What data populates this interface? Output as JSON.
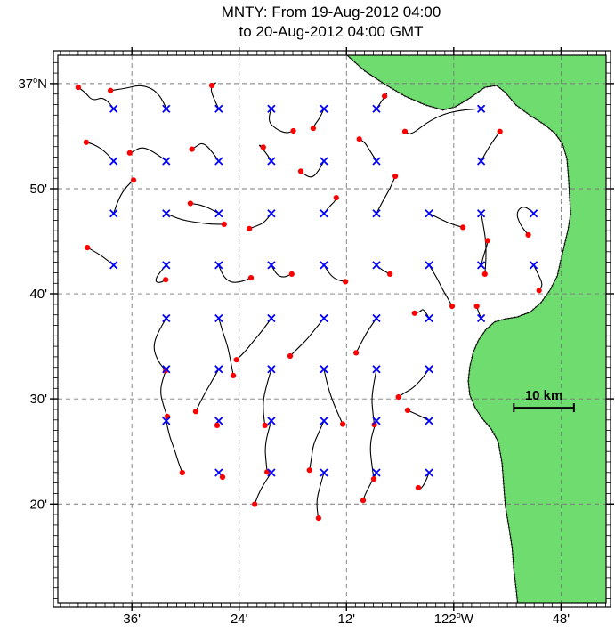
{
  "title": {
    "line1": "MNTY: From 19-Aug-2012 04:00",
    "line2": "to 20-Aug-2012 04:00 GMT"
  },
  "colors": {
    "land": "#6edc6e",
    "coast": "#000000",
    "grid": "#7a7a7a",
    "frame": "#000000",
    "trajectory": "#000000",
    "start_marker": "#0000ff",
    "end_marker": "#ff0000",
    "background": "#ffffff"
  },
  "chart_data": {
    "type": "line",
    "subtype": "trajectory-map",
    "title": "MNTY: From 19-Aug-2012 04:00 to 20-Aug-2012 04:00 GMT",
    "grid": "dashed",
    "legend": "none",
    "x_axis": {
      "range": [
        -122.738,
        -121.716
      ],
      "label_ticks": [
        {
          "lon": -122.6,
          "label": "36'"
        },
        {
          "lon": -122.4,
          "label": "24'"
        },
        {
          "lon": -122.2,
          "label": "12'"
        },
        {
          "lon": -122.0,
          "label": "122°W"
        },
        {
          "lon": -121.8,
          "label": "48'"
        }
      ]
    },
    "y_axis": {
      "range": [
        36.177,
        37.045
      ],
      "label_ticks": [
        {
          "lat": 37.0,
          "label": "37°N"
        },
        {
          "lat": 36.8333,
          "label": "50'"
        },
        {
          "lat": 36.6667,
          "label": "40'"
        },
        {
          "lat": 36.5,
          "label": "30'"
        },
        {
          "lat": 36.3333,
          "label": "20'"
        }
      ]
    },
    "markers": {
      "start": {
        "shape": "x",
        "color": "#0000ff"
      },
      "end": {
        "shape": "dot",
        "color": "#ff0000"
      }
    },
    "scale_bar": {
      "label": "10 km",
      "km": 10,
      "lon_from": -121.888,
      "lon_to": -121.776,
      "lat": 36.486
    },
    "coastline": [
      [
        -122.199,
        37.045
      ],
      [
        -122.166,
        37.02
      ],
      [
        -122.129,
        36.999
      ],
      [
        -122.091,
        36.98
      ],
      [
        -122.053,
        36.966
      ],
      [
        -122.02,
        36.958
      ],
      [
        -121.997,
        36.963
      ],
      [
        -121.97,
        36.977
      ],
      [
        -121.942,
        36.994
      ],
      [
        -121.92,
        36.997
      ],
      [
        -121.904,
        36.986
      ],
      [
        -121.884,
        36.966
      ],
      [
        -121.857,
        36.949
      ],
      [
        -121.831,
        36.935
      ],
      [
        -121.811,
        36.921
      ],
      [
        -121.797,
        36.904
      ],
      [
        -121.789,
        36.881
      ],
      [
        -121.786,
        36.85
      ],
      [
        -121.784,
        36.819
      ],
      [
        -121.782,
        36.794
      ],
      [
        -121.787,
        36.768
      ],
      [
        -121.794,
        36.743
      ],
      [
        -121.801,
        36.718
      ],
      [
        -121.807,
        36.695
      ],
      [
        -121.821,
        36.672
      ],
      [
        -121.837,
        36.653
      ],
      [
        -121.857,
        36.638
      ],
      [
        -121.881,
        36.63
      ],
      [
        -121.904,
        36.627
      ],
      [
        -121.924,
        36.622
      ],
      [
        -121.94,
        36.61
      ],
      [
        -121.954,
        36.593
      ],
      [
        -121.964,
        36.573
      ],
      [
        -121.97,
        36.551
      ],
      [
        -121.973,
        36.528
      ],
      [
        -121.97,
        36.506
      ],
      [
        -121.96,
        36.486
      ],
      [
        -121.947,
        36.469
      ],
      [
        -121.93,
        36.452
      ],
      [
        -121.917,
        36.432
      ],
      [
        -121.91,
        36.398
      ],
      [
        -121.907,
        36.364
      ],
      [
        -121.904,
        36.331
      ],
      [
        -121.897,
        36.296
      ],
      [
        -121.891,
        36.263
      ],
      [
        -121.888,
        36.229
      ],
      [
        -121.884,
        36.201
      ],
      [
        -121.881,
        36.177
      ]
    ],
    "trajectories": [
      [
        [
          -122.634,
          36.96
        ],
        [
          -122.65,
          36.98
        ],
        [
          -122.673,
          36.972
        ],
        [
          -122.687,
          36.986
        ],
        [
          -122.7,
          36.994
        ]
      ],
      [
        [
          -122.536,
          36.96
        ],
        [
          -122.547,
          36.984
        ],
        [
          -122.58,
          36.999
        ],
        [
          -122.614,
          36.992
        ],
        [
          -122.64,
          36.989
        ]
      ],
      [
        [
          -122.438,
          36.96
        ],
        [
          -122.448,
          36.977
        ],
        [
          -122.454,
          36.994
        ],
        [
          -122.441,
          37.003
        ],
        [
          -122.451,
          36.997
        ]
      ],
      [
        [
          -122.34,
          36.96
        ],
        [
          -122.348,
          36.942
        ],
        [
          -122.332,
          36.928
        ],
        [
          -122.312,
          36.921
        ],
        [
          -122.299,
          36.925
        ]
      ],
      [
        [
          -122.242,
          36.96
        ],
        [
          -122.249,
          36.946
        ],
        [
          -122.259,
          36.935
        ],
        [
          -122.262,
          36.929
        ]
      ],
      [
        [
          -122.144,
          36.96
        ],
        [
          -122.133,
          36.974
        ],
        [
          -122.123,
          36.986
        ],
        [
          -122.129,
          36.98
        ]
      ],
      [
        [
          -121.949,
          36.96
        ],
        [
          -121.997,
          36.958
        ],
        [
          -122.043,
          36.943
        ],
        [
          -122.08,
          36.918
        ],
        [
          -122.091,
          36.924
        ]
      ],
      [
        [
          -122.634,
          36.877
        ],
        [
          -122.65,
          36.893
        ],
        [
          -122.672,
          36.904
        ],
        [
          -122.685,
          36.907
        ]
      ],
      [
        [
          -122.536,
          36.877
        ],
        [
          -122.556,
          36.89
        ],
        [
          -122.58,
          36.9
        ],
        [
          -122.597,
          36.893
        ],
        [
          -122.604,
          36.89
        ]
      ],
      [
        [
          -122.438,
          36.877
        ],
        [
          -122.451,
          36.893
        ],
        [
          -122.468,
          36.907
        ],
        [
          -122.481,
          36.9
        ],
        [
          -122.488,
          36.896
        ]
      ],
      [
        [
          -122.34,
          36.877
        ],
        [
          -122.352,
          36.893
        ],
        [
          -122.365,
          36.904
        ],
        [
          -122.355,
          36.899
        ]
      ],
      [
        [
          -122.242,
          36.877
        ],
        [
          -122.252,
          36.861
        ],
        [
          -122.265,
          36.85
        ],
        [
          -122.279,
          36.856
        ],
        [
          -122.285,
          36.861
        ]
      ],
      [
        [
          -122.144,
          36.877
        ],
        [
          -122.156,
          36.893
        ],
        [
          -122.166,
          36.907
        ],
        [
          -122.176,
          36.912
        ]
      ],
      [
        [
          -121.949,
          36.877
        ],
        [
          -121.937,
          36.896
        ],
        [
          -121.924,
          36.912
        ],
        [
          -121.914,
          36.924
        ]
      ],
      [
        [
          -122.634,
          36.794
        ],
        [
          -122.627,
          36.813
        ],
        [
          -122.614,
          36.833
        ],
        [
          -122.597,
          36.847
        ]
      ],
      [
        [
          -122.536,
          36.794
        ],
        [
          -122.514,
          36.785
        ],
        [
          -122.481,
          36.78
        ],
        [
          -122.451,
          36.777
        ],
        [
          -122.428,
          36.777
        ]
      ],
      [
        [
          -122.438,
          36.794
        ],
        [
          -122.454,
          36.802
        ],
        [
          -122.474,
          36.808
        ],
        [
          -122.491,
          36.81
        ]
      ],
      [
        [
          -122.34,
          36.794
        ],
        [
          -122.352,
          36.78
        ],
        [
          -122.368,
          36.774
        ],
        [
          -122.381,
          36.77
        ]
      ],
      [
        [
          -122.242,
          36.794
        ],
        [
          -122.232,
          36.805
        ],
        [
          -122.222,
          36.813
        ],
        [
          -122.219,
          36.819
        ]
      ],
      [
        [
          -122.144,
          36.794
        ],
        [
          -122.133,
          36.813
        ],
        [
          -122.119,
          36.833
        ],
        [
          -122.109,
          36.853
        ]
      ],
      [
        [
          -122.046,
          36.794
        ],
        [
          -122.025,
          36.785
        ],
        [
          -122.003,
          36.777
        ],
        [
          -121.983,
          36.772
        ]
      ],
      [
        [
          -121.851,
          36.794
        ],
        [
          -121.867,
          36.808
        ],
        [
          -121.884,
          36.797
        ],
        [
          -121.877,
          36.777
        ],
        [
          -121.861,
          36.76
        ]
      ],
      [
        [
          -122.634,
          36.712
        ],
        [
          -122.65,
          36.723
        ],
        [
          -122.67,
          36.734
        ],
        [
          -122.683,
          36.74
        ]
      ],
      [
        [
          -122.536,
          36.712
        ],
        [
          -122.551,
          36.698
        ],
        [
          -122.557,
          36.686
        ],
        [
          -122.547,
          36.684
        ],
        [
          -122.537,
          36.689
        ]
      ],
      [
        [
          -122.438,
          36.712
        ],
        [
          -122.431,
          36.695
        ],
        [
          -122.415,
          36.684
        ],
        [
          -122.395,
          36.686
        ],
        [
          -122.378,
          36.692
        ]
      ],
      [
        [
          -122.34,
          36.712
        ],
        [
          -122.332,
          36.698
        ],
        [
          -122.318,
          36.692
        ],
        [
          -122.302,
          36.698
        ]
      ],
      [
        [
          -122.242,
          36.712
        ],
        [
          -122.232,
          36.698
        ],
        [
          -122.219,
          36.689
        ],
        [
          -122.202,
          36.686
        ]
      ],
      [
        [
          -122.144,
          36.712
        ],
        [
          -122.136,
          36.706
        ],
        [
          -122.126,
          36.701
        ],
        [
          -122.119,
          36.698
        ]
      ],
      [
        [
          -122.046,
          36.712
        ],
        [
          -122.033,
          36.695
        ],
        [
          -122.02,
          36.672
        ],
        [
          -122.01,
          36.658
        ],
        [
          -122.003,
          36.647
        ]
      ],
      [
        [
          -121.949,
          36.712
        ],
        [
          -121.944,
          36.729
        ],
        [
          -121.938,
          36.743
        ],
        [
          -121.937,
          36.751
        ]
      ],
      [
        [
          -121.851,
          36.712
        ],
        [
          -121.841,
          36.695
        ],
        [
          -121.834,
          36.681
        ],
        [
          -121.841,
          36.672
        ]
      ],
      [
        [
          -122.536,
          36.628
        ],
        [
          -122.551,
          36.607
        ],
        [
          -122.561,
          36.582
        ],
        [
          -122.551,
          36.559
        ],
        [
          -122.537,
          36.545
        ]
      ],
      [
        [
          -122.438,
          36.628
        ],
        [
          -122.431,
          36.607
        ],
        [
          -122.421,
          36.582
        ],
        [
          -122.415,
          36.556
        ],
        [
          -122.411,
          36.537
        ]
      ],
      [
        [
          -122.34,
          36.628
        ],
        [
          -122.355,
          36.61
        ],
        [
          -122.375,
          36.59
        ],
        [
          -122.391,
          36.573
        ],
        [
          -122.405,
          36.562
        ]
      ],
      [
        [
          -122.242,
          36.628
        ],
        [
          -122.259,
          36.61
        ],
        [
          -122.275,
          36.593
        ],
        [
          -122.292,
          36.579
        ],
        [
          -122.305,
          36.568
        ]
      ],
      [
        [
          -122.144,
          36.628
        ],
        [
          -122.159,
          36.61
        ],
        [
          -122.172,
          36.59
        ],
        [
          -122.182,
          36.573
        ]
      ],
      [
        [
          -122.046,
          36.628
        ],
        [
          -122.056,
          36.644
        ],
        [
          -122.063,
          36.638
        ],
        [
          -122.073,
          36.636
        ]
      ],
      [
        [
          -121.949,
          36.628
        ],
        [
          -121.954,
          36.638
        ],
        [
          -121.957,
          36.647
        ]
      ],
      [
        [
          -122.536,
          36.547
        ],
        [
          -122.544,
          36.528
        ],
        [
          -122.547,
          36.509
        ],
        [
          -122.541,
          36.489
        ],
        [
          -122.534,
          36.472
        ]
      ],
      [
        [
          -122.438,
          36.547
        ],
        [
          -122.451,
          36.528
        ],
        [
          -122.464,
          36.509
        ],
        [
          -122.474,
          36.492
        ],
        [
          -122.481,
          36.48
        ]
      ],
      [
        [
          -122.34,
          36.547
        ],
        [
          -122.348,
          36.525
        ],
        [
          -122.355,
          36.5
        ],
        [
          -122.355,
          36.477
        ],
        [
          -122.352,
          36.458
        ]
      ],
      [
        [
          -122.242,
          36.547
        ],
        [
          -122.236,
          36.523
        ],
        [
          -122.226,
          36.497
        ],
        [
          -122.216,
          36.477
        ],
        [
          -122.207,
          36.46
        ]
      ],
      [
        [
          -122.144,
          36.547
        ],
        [
          -122.149,
          36.525
        ],
        [
          -122.153,
          36.5
        ],
        [
          -122.151,
          36.48
        ],
        [
          -122.148,
          36.459
        ]
      ],
      [
        [
          -122.046,
          36.547
        ],
        [
          -122.06,
          36.531
        ],
        [
          -122.076,
          36.517
        ],
        [
          -122.093,
          36.509
        ],
        [
          -122.103,
          36.503
        ]
      ],
      [
        [
          -122.438,
          36.465
        ],
        [
          -122.445,
          36.46
        ],
        [
          -122.441,
          36.458
        ]
      ],
      [
        [
          -122.34,
          36.465
        ],
        [
          -122.348,
          36.443
        ],
        [
          -122.352,
          36.421
        ],
        [
          -122.35,
          36.401
        ],
        [
          -122.348,
          36.384
        ]
      ],
      [
        [
          -122.242,
          36.465
        ],
        [
          -122.252,
          36.446
        ],
        [
          -122.262,
          36.427
        ],
        [
          -122.265,
          36.407
        ],
        [
          -122.269,
          36.387
        ]
      ],
      [
        [
          -122.144,
          36.465
        ],
        [
          -122.153,
          36.443
        ],
        [
          -122.156,
          36.421
        ],
        [
          -122.153,
          36.398
        ],
        [
          -122.149,
          36.373
        ]
      ],
      [
        [
          -122.046,
          36.465
        ],
        [
          -122.06,
          36.472
        ],
        [
          -122.073,
          36.477
        ],
        [
          -122.086,
          36.482
        ]
      ],
      [
        [
          -122.34,
          36.383
        ],
        [
          -122.355,
          36.364
        ],
        [
          -122.365,
          36.347
        ],
        [
          -122.371,
          36.333
        ]
      ],
      [
        [
          -122.242,
          36.383
        ],
        [
          -122.249,
          36.362
        ],
        [
          -122.255,
          36.342
        ],
        [
          -122.255,
          36.325
        ],
        [
          -122.252,
          36.311
        ]
      ],
      [
        [
          -122.144,
          36.383
        ],
        [
          -122.156,
          36.364
        ],
        [
          -122.166,
          36.347
        ],
        [
          -122.169,
          36.339
        ]
      ],
      [
        [
          -122.046,
          36.383
        ],
        [
          -122.053,
          36.367
        ],
        [
          -122.063,
          36.356
        ],
        [
          -122.066,
          36.359
        ]
      ],
      [
        [
          -122.536,
          36.465
        ],
        [
          -122.531,
          36.443
        ],
        [
          -122.521,
          36.421
        ],
        [
          -122.514,
          36.401
        ],
        [
          -122.506,
          36.383
        ]
      ],
      [
        [
          -122.438,
          36.383
        ],
        [
          -122.431,
          36.379
        ],
        [
          -122.428,
          36.373
        ],
        [
          -122.431,
          36.376
        ]
      ],
      [
        [
          -121.949,
          36.794
        ],
        [
          -121.944,
          36.771
        ],
        [
          -121.94,
          36.748
        ],
        [
          -121.94,
          36.72
        ],
        [
          -121.942,
          36.698
        ]
      ]
    ]
  }
}
